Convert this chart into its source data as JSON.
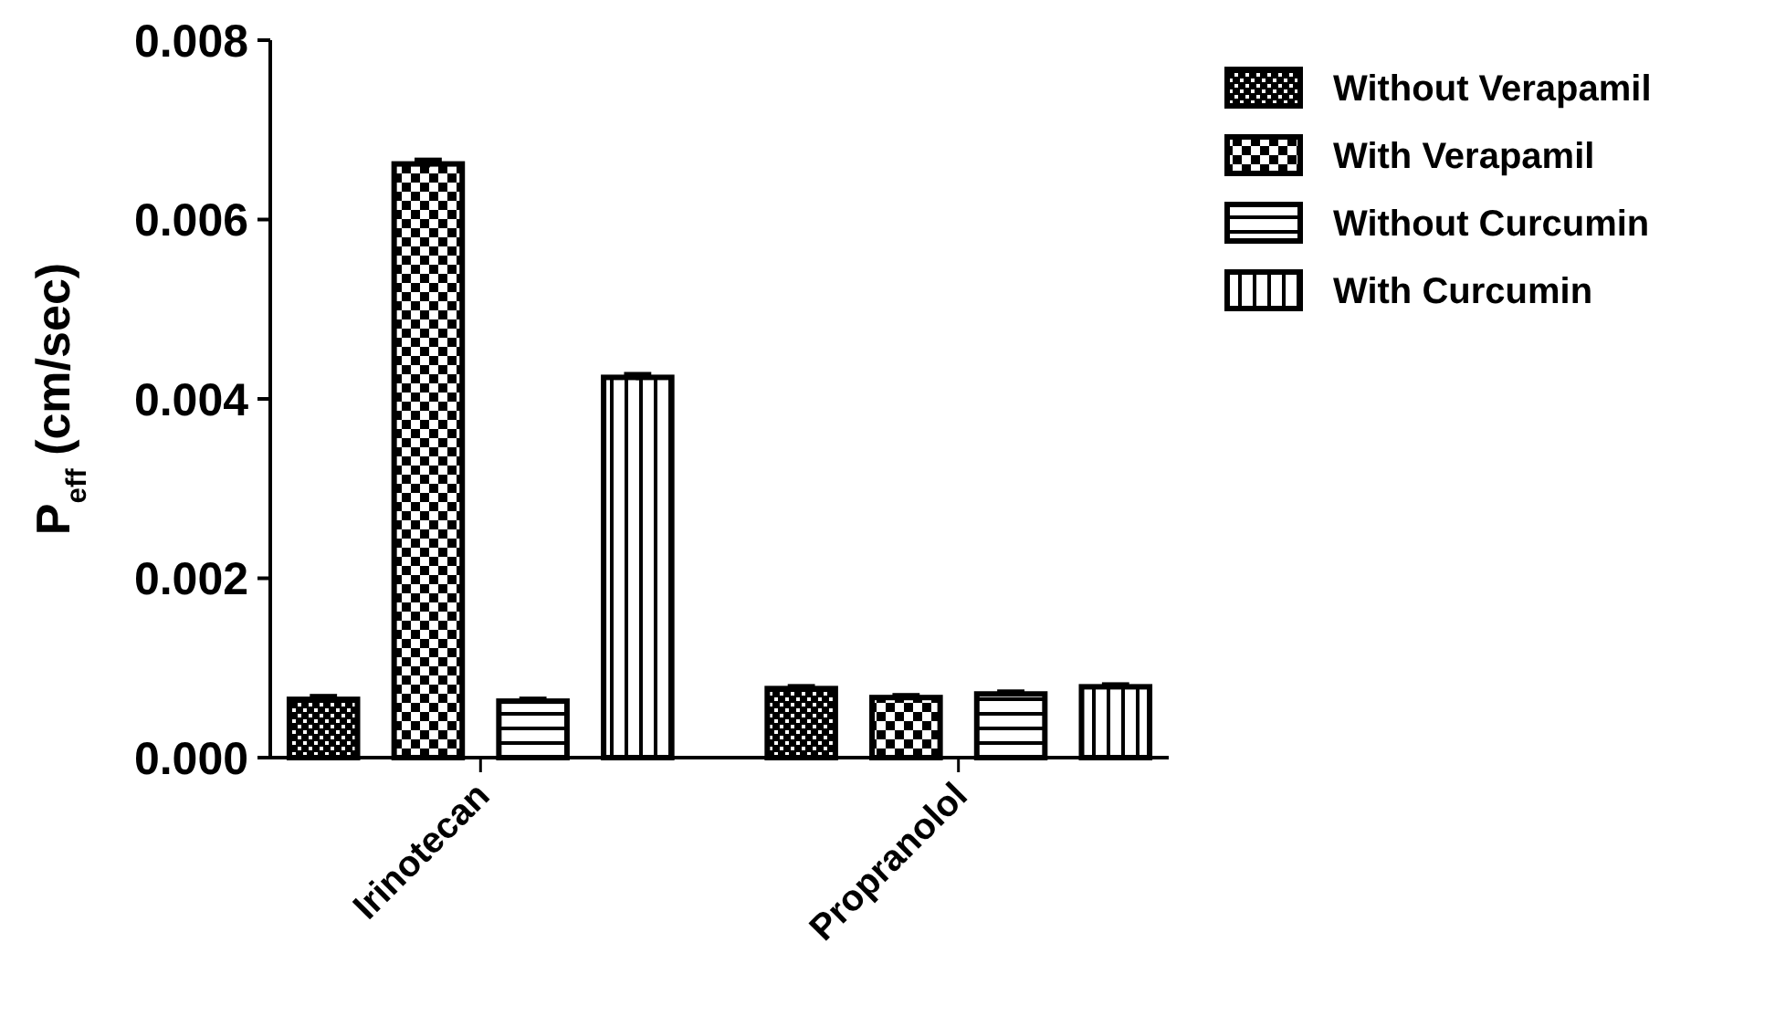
{
  "chart_data": {
    "type": "bar",
    "ylabel": "P$_{eff}$  (cm/sec)",
    "categories": [
      "Irinotecan",
      "Propranolol"
    ],
    "series": [
      {
        "name": "Without Verapamil",
        "color": "#000000",
        "values": [
          0.00065,
          0.00077
        ],
        "errors": [
          3e-05,
          2e-05
        ]
      },
      {
        "name": "With Verapamil",
        "color": "#000000",
        "values": [
          0.00662,
          0.00067
        ],
        "errors": [
          4e-05,
          2e-05
        ]
      },
      {
        "name": "Without Curcumin",
        "color": "#000000",
        "values": [
          0.00063,
          0.00071
        ],
        "errors": [
          2e-05,
          2e-05
        ]
      },
      {
        "name": "With Curcumin",
        "color": "#000000",
        "values": [
          0.00424,
          0.00079
        ],
        "errors": [
          3e-05,
          2e-05
        ]
      }
    ],
    "ylim": [
      0,
      0.008
    ],
    "yticks": [
      {
        "value": 0,
        "label": "0.000"
      },
      {
        "value": 0.002,
        "label": "0.002"
      },
      {
        "value": 0.004,
        "label": "0.004"
      },
      {
        "value": 0.006,
        "label": "0.006"
      },
      {
        "value": 0.008,
        "label": "0.008"
      }
    ],
    "grid": false,
    "legend": "top right"
  }
}
